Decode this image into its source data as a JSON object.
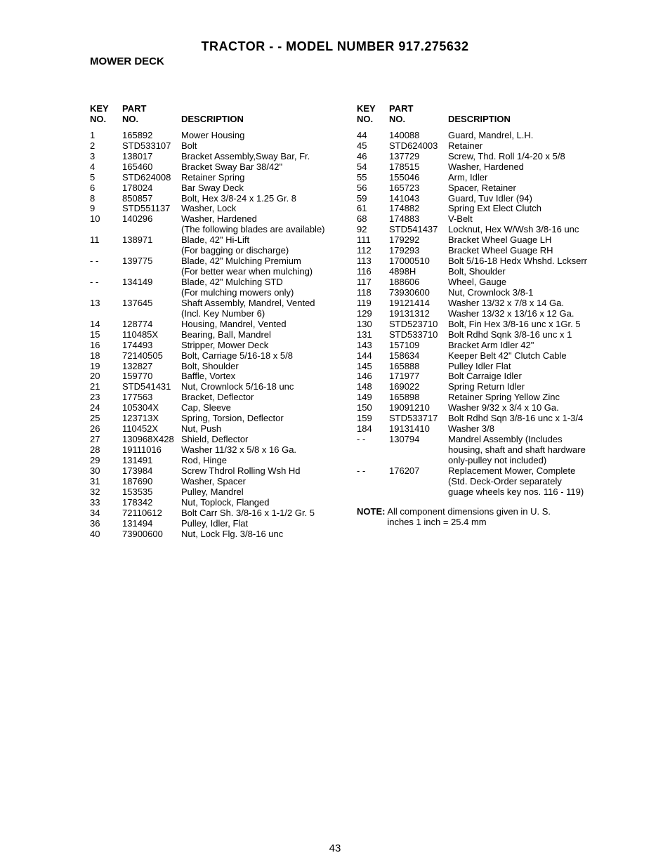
{
  "title": "TRACTOR - - MODEL NUMBER 917.275632",
  "subtitle": "MOWER DECK",
  "page_number": "43",
  "headers": {
    "key_line1": "KEY",
    "key_line2": "NO.",
    "part_line1": "PART",
    "part_line2": "NO.",
    "desc": "DESCRIPTION"
  },
  "note": {
    "label": "NOTE:",
    "text_line1": "All component dimensions given in U. S.",
    "text_line2": "inches 1 inch = 25.4 mm"
  },
  "left": [
    {
      "key": "1",
      "part": "165892",
      "desc": "Mower Housing"
    },
    {
      "key": "2",
      "part": "STD533107",
      "desc": "Bolt"
    },
    {
      "key": "3",
      "part": "138017",
      "desc": "Bracket Assembly,Sway Bar, Fr."
    },
    {
      "key": "4",
      "part": "165460",
      "desc": "Bracket Sway Bar 38/42\""
    },
    {
      "key": "5",
      "part": "STD624008",
      "desc": "Retainer Spring"
    },
    {
      "key": "6",
      "part": "178024",
      "desc": "Bar Sway Deck"
    },
    {
      "key": "8",
      "part": "850857",
      "desc": "Bolt, Hex 3/8-24 x 1.25 Gr. 8"
    },
    {
      "key": "9",
      "part": "STD551137",
      "desc": "Washer, Lock"
    },
    {
      "key": "10",
      "part": "140296",
      "desc": "Washer, Hardened\n(The following blades are available)"
    },
    {
      "key": "11",
      "part": "138971",
      "desc": "Blade, 42\" Hi-Lift\n(For bagging or discharge)"
    },
    {
      "key": "- -",
      "part": "139775",
      "desc": "Blade, 42\" Mulching Premium\n(For better wear when mulching)"
    },
    {
      "key": "- -",
      "part": "134149",
      "desc": "Blade, 42\" Mulching STD\n(For mulching mowers only)"
    },
    {
      "key": "13",
      "part": "137645",
      "desc": "Shaft Assembly, Mandrel, Vented\n(Incl. Key Number 6)"
    },
    {
      "key": "14",
      "part": "128774",
      "desc": "Housing, Mandrel, Vented"
    },
    {
      "key": "15",
      "part": "110485X",
      "desc": "Bearing, Ball, Mandrel"
    },
    {
      "key": "16",
      "part": "174493",
      "desc": "Stripper, Mower Deck"
    },
    {
      "key": "18",
      "part": "72140505",
      "desc": "Bolt, Carriage 5/16-18 x 5/8"
    },
    {
      "key": "19",
      "part": "132827",
      "desc": "Bolt, Shoulder"
    },
    {
      "key": "20",
      "part": "159770",
      "desc": "Baffle, Vortex"
    },
    {
      "key": "21",
      "part": "STD541431",
      "desc": "Nut, Crownlock 5/16-18 unc"
    },
    {
      "key": "23",
      "part": "177563",
      "desc": "Bracket, Deflector"
    },
    {
      "key": "24",
      "part": "105304X",
      "desc": "Cap, Sleeve"
    },
    {
      "key": "25",
      "part": "123713X",
      "desc": "Spring, Torsion, Deflector"
    },
    {
      "key": "26",
      "part": "110452X",
      "desc": "Nut, Push"
    },
    {
      "key": "27",
      "part": "130968X428",
      "desc": "Shield, Deflector"
    },
    {
      "key": "28",
      "part": "19111016",
      "desc": "Washer 11/32 x 5/8 x 16 Ga."
    },
    {
      "key": "29",
      "part": "131491",
      "desc": "Rod, Hinge"
    },
    {
      "key": "30",
      "part": "173984",
      "desc": "Screw Thdrol Rolling Wsh Hd"
    },
    {
      "key": "31",
      "part": "187690",
      "desc": "Washer, Spacer"
    },
    {
      "key": "32",
      "part": "153535",
      "desc": "Pulley, Mandrel"
    },
    {
      "key": "33",
      "part": "178342",
      "desc": "Nut, Toplock, Flanged"
    },
    {
      "key": "34",
      "part": "72110612",
      "desc": "Bolt Carr Sh. 3/8-16 x 1-1/2 Gr. 5"
    },
    {
      "key": "36",
      "part": "131494",
      "desc": "Pulley, Idler, Flat"
    },
    {
      "key": "40",
      "part": "73900600",
      "desc": "Nut, Lock Flg. 3/8-16 unc"
    }
  ],
  "right": [
    {
      "key": "44",
      "part": "140088",
      "desc": "Guard, Mandrel, L.H."
    },
    {
      "key": "45",
      "part": "STD624003",
      "desc": "Retainer"
    },
    {
      "key": "46",
      "part": "137729",
      "desc": "Screw, Thd. Roll 1/4-20 x 5/8"
    },
    {
      "key": "54",
      "part": "178515",
      "desc": "Washer, Hardened"
    },
    {
      "key": "55",
      "part": "155046",
      "desc": "Arm, Idler"
    },
    {
      "key": "56",
      "part": "165723",
      "desc": "Spacer, Retainer"
    },
    {
      "key": "59",
      "part": "141043",
      "desc": "Guard, Tuv Idler (94)"
    },
    {
      "key": "61",
      "part": "174882",
      "desc": "Spring Ext Elect Clutch"
    },
    {
      "key": "68",
      "part": "174883",
      "desc": "V-Belt"
    },
    {
      "key": "92",
      "part": "STD541437",
      "desc": "Locknut, Hex W/Wsh 3/8-16 unc"
    },
    {
      "key": "111",
      "part": "179292",
      "desc": "Bracket Wheel Guage LH"
    },
    {
      "key": "112",
      "part": "179293",
      "desc": "Bracket Wheel Guage RH"
    },
    {
      "key": "113",
      "part": "17000510",
      "desc": "Bolt 5/16-18 Hedx Whshd. Lckserr"
    },
    {
      "key": "116",
      "part": "4898H",
      "desc": "Bolt, Shoulder"
    },
    {
      "key": "117",
      "part": "188606",
      "desc": "Wheel, Gauge"
    },
    {
      "key": "118",
      "part": "73930600",
      "desc": "Nut, Crownlock  3/8-1"
    },
    {
      "key": "119",
      "part": "19121414",
      "desc": "Washer  13/32 x 7/8 x 14 Ga."
    },
    {
      "key": "129",
      "part": "19131312",
      "desc": "Washer  13/32 x 13/16 x 12 Ga."
    },
    {
      "key": "130",
      "part": "STD523710",
      "desc": "Bolt, Fin Hex 3/8-16 unc x 1Gr. 5"
    },
    {
      "key": "131",
      "part": "STD533710",
      "desc": "Bolt Rdhd Sqnk 3/8-16 unc x 1"
    },
    {
      "key": "143",
      "part": "157109",
      "desc": "Bracket Arm Idler 42\""
    },
    {
      "key": "144",
      "part": "158634",
      "desc": "Keeper Belt 42\" Clutch Cable"
    },
    {
      "key": "145",
      "part": "165888",
      "desc": "Pulley Idler Flat"
    },
    {
      "key": "146",
      "part": "171977",
      "desc": "Bolt Carraige Idler"
    },
    {
      "key": "148",
      "part": "169022",
      "desc": "Spring Return Idler"
    },
    {
      "key": "149",
      "part": "165898",
      "desc": "Retainer Spring Yellow Zinc"
    },
    {
      "key": "150",
      "part": "19091210",
      "desc": "Washer  9/32 x 3/4 x 10 Ga."
    },
    {
      "key": "159",
      "part": "STD533717",
      "desc": "Bolt Rdhd Sqn 3/8-16 unc x 1-3/4"
    },
    {
      "key": "184",
      "part": "19131410",
      "desc": "Washer 3/8"
    },
    {
      "key": "- -",
      "part": "130794",
      "desc": "Mandrel Assembly (Includes\nhousing, shaft and shaft hardware\nonly-pulley not included)"
    },
    {
      "key": "- -",
      "part": "176207",
      "desc": "Replacement Mower, Complete\n(Std. Deck-Order separately\nguage wheels key nos. 116 - 119)"
    }
  ]
}
